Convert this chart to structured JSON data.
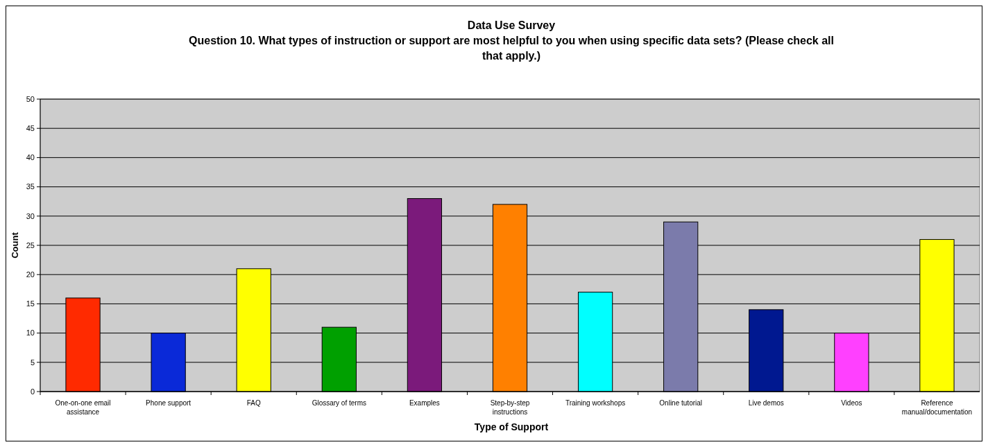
{
  "chart_data": {
    "type": "bar",
    "title": "Data Use Survey",
    "subtitle": "Question 10. What types of instruction or support are most helpful to you when using specific data sets?  (Please check all that apply.)",
    "xlabel": "Type of Support",
    "ylabel": "Count",
    "categories": [
      "One-on-one email assistance",
      "Phone support",
      "FAQ",
      "Glossary of terms",
      "Examples",
      "Step-by-step instructions",
      "Training workshops",
      "Online tutorial",
      "Live demos",
      "Videos",
      "Reference manual/documentation"
    ],
    "values": [
      16,
      10,
      21,
      11,
      33,
      32,
      17,
      29,
      14,
      10,
      26
    ],
    "colors": [
      "#ff2a00",
      "#0a29d8",
      "#ffff00",
      "#00a000",
      "#7b1a7b",
      "#ff8000",
      "#00ffff",
      "#7b7bab",
      "#001890",
      "#ff40ff",
      "#ffff00"
    ],
    "ylim": [
      0,
      50
    ],
    "yticks": [
      0,
      5,
      10,
      15,
      20,
      25,
      30,
      35,
      40,
      45,
      50
    ],
    "grid": "y"
  }
}
